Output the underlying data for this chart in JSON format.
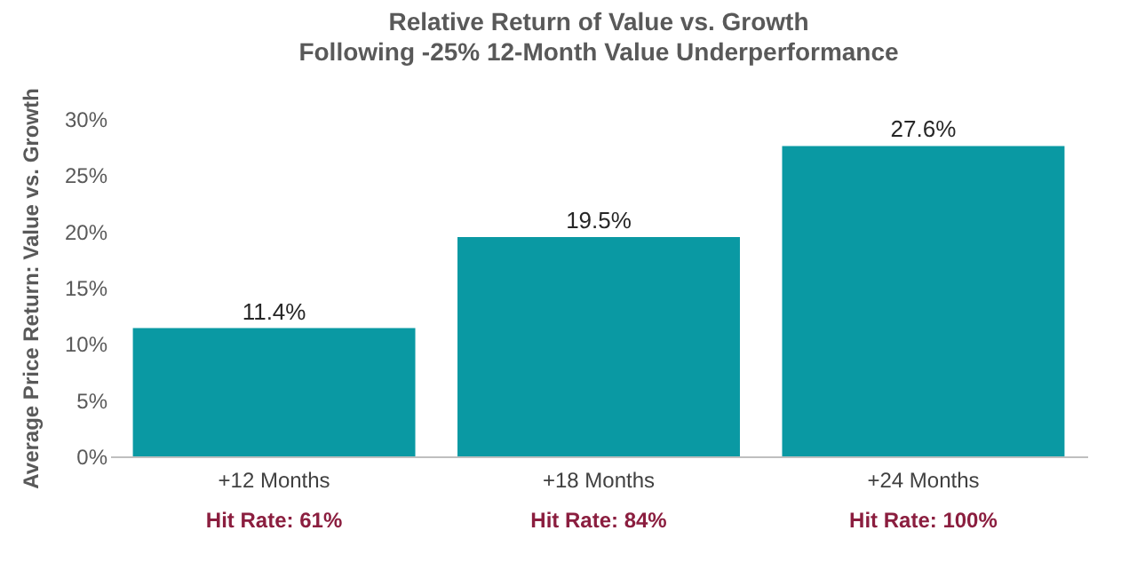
{
  "chart_data": {
    "type": "bar",
    "title": "Relative Return of Value vs. Growth",
    "subtitle": "Following -25% 12-Month Value Underperformance",
    "ylabel": "Average Price Return: Value vs. Growth",
    "categories": [
      "+12 Months",
      "+18 Months",
      "+24 Months"
    ],
    "values": [
      11.4,
      19.5,
      27.6
    ],
    "value_labels": [
      "11.4%",
      "19.5%",
      "27.6%"
    ],
    "color": "#0a99a3",
    "ylim": [
      0,
      30
    ],
    "yticks": [
      {
        "value": 0,
        "label": "0%"
      },
      {
        "value": 5,
        "label": "5%"
      },
      {
        "value": 10,
        "label": "10%"
      },
      {
        "value": 15,
        "label": "15%"
      },
      {
        "value": 20,
        "label": "20%"
      },
      {
        "value": 25,
        "label": "25%"
      },
      {
        "value": 30,
        "label": "30%"
      }
    ],
    "annotations": [
      "Hit Rate: 61%",
      "Hit Rate: 84%",
      "Hit Rate: 100%"
    ],
    "grid": false
  }
}
